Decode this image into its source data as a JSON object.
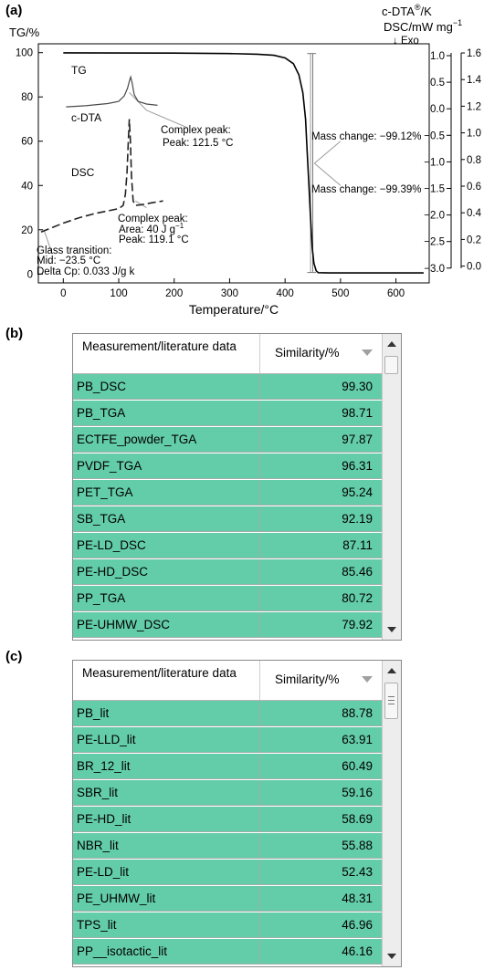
{
  "panels": {
    "a": "(a)",
    "b": "(b)",
    "c": "(c)"
  },
  "chart_data": {
    "type": "line",
    "xlabel": "Temperature/°C",
    "x_ticks": [
      0,
      100,
      200,
      300,
      400,
      500,
      600
    ],
    "xlim": [
      -45,
      660
    ],
    "left_axis": {
      "label": "TG/%",
      "ticks": [
        0,
        20,
        40,
        60,
        80,
        100
      ],
      "ylim": [
        -4,
        104
      ]
    },
    "right_axis_1": {
      "label_line1": "c-DTA",
      "label_sup": "®",
      "label_line1_tail": "/K",
      "label_line2": "DSC/mW mg",
      "label_line2_sup": "−1",
      "label_line3": "↓ Exo",
      "ticks": [
        "1.0",
        "0.5",
        "0.0",
        "−0.5",
        "−1.0",
        "−1.5",
        "−2.0",
        "−2.5",
        "−3.0"
      ]
    },
    "right_axis_2": {
      "ticks": [
        "1.6",
        "1.4",
        "1.2",
        "1.0",
        "0.8",
        "0.6",
        "0.4",
        "0.2",
        "0.0"
      ]
    },
    "series": [
      {
        "name": "TG",
        "x": [
          0,
          200,
          300,
          350,
          380,
          400,
          415,
          425,
          432,
          437,
          440,
          443,
          446,
          449,
          452,
          456,
          460,
          480,
          650
        ],
        "y": [
          99.9,
          99.8,
          99.6,
          99.3,
          98.8,
          97.6,
          95,
          90,
          82,
          70,
          55,
          40,
          25,
          12,
          5,
          1.5,
          0.6,
          0.5,
          0.5
        ]
      },
      {
        "name": "c-DTA",
        "x": [
          5,
          40,
          80,
          100,
          110,
          116,
          119,
          121.5,
          124,
          128,
          135,
          150,
          170
        ],
        "y": [
          75.5,
          76,
          77,
          78,
          80.5,
          84,
          87,
          89,
          86.5,
          81,
          78,
          76.8,
          76.2
        ]
      },
      {
        "name": "DSC",
        "x": [
          -40,
          -20,
          0,
          30,
          60,
          90,
          100,
          108,
          112,
          115,
          117,
          119.1,
          121,
          123,
          126,
          130,
          140,
          160,
          180
        ],
        "y": [
          19,
          21,
          23,
          25.5,
          27.5,
          29,
          29.5,
          31,
          36,
          46,
          58,
          70,
          60,
          44,
          33,
          31,
          31.3,
          32.2,
          33
        ]
      }
    ],
    "annotations": {
      "tg_label": "TG",
      "cdta_label": "c-DTA",
      "dsc_label": "DSC",
      "cdta_peak_1": "Complex peak:",
      "cdta_peak_2": "Peak: 121.5 °C",
      "dsc_peak_1": "Complex peak:",
      "dsc_peak_2": "Area: 40 J g",
      "dsc_peak_2_sup": "−1",
      "dsc_peak_3": "Peak: 119.1 °C",
      "glass_1": "Glass transition:",
      "glass_2": "Mid:   −23.5 °C",
      "glass_3": "Delta  Cp:  0.033 J/g k",
      "mass_change_1": "Mass change: −99.12%",
      "mass_change_2": "Mass change: −99.39%"
    },
    "colors": {
      "tg": "#000000",
      "cdta": "#4a4a4a",
      "dsc": "#222222",
      "annotation_line": "#9a9a9a"
    }
  },
  "table_b": {
    "header": {
      "col1": "Measurement/literature data",
      "col2": "Similarity/%"
    },
    "rows": [
      {
        "name": "PB_DSC",
        "value": "99.30"
      },
      {
        "name": "PB_TGA",
        "value": "98.71"
      },
      {
        "name": "ECTFE_powder_TGA",
        "value": "97.87"
      },
      {
        "name": "PVDF_TGA",
        "value": "96.31"
      },
      {
        "name": "PET_TGA",
        "value": "95.24"
      },
      {
        "name": "SB_TGA",
        "value": "92.19"
      },
      {
        "name": "PE-LD_DSC",
        "value": "87.11"
      },
      {
        "name": "PE-HD_DSC",
        "value": "85.46"
      },
      {
        "name": "PP_TGA",
        "value": "80.72"
      },
      {
        "name": "PE-UHMW_DSC",
        "value": "79.92"
      }
    ]
  },
  "table_c": {
    "header": {
      "col1": "Measurement/literature data",
      "col2": "Similarity/%"
    },
    "rows": [
      {
        "name": "PB_lit",
        "value": "88.78"
      },
      {
        "name": "PE-LLD_lit",
        "value": "63.91"
      },
      {
        "name": "BR_12_lit",
        "value": "60.49"
      },
      {
        "name": "SBR_lit",
        "value": "59.16"
      },
      {
        "name": "PE-HD_lit",
        "value": "58.69"
      },
      {
        "name": "NBR_lit",
        "value": "55.88"
      },
      {
        "name": "PE-LD_lit",
        "value": "52.43"
      },
      {
        "name": "PE_UHMW_lit",
        "value": "48.31"
      },
      {
        "name": "TPS_lit",
        "value": "46.96"
      },
      {
        "name": "PP__isotactic_lit",
        "value": "46.16"
      }
    ]
  },
  "accent": {
    "row_fill": "#63cca8"
  }
}
